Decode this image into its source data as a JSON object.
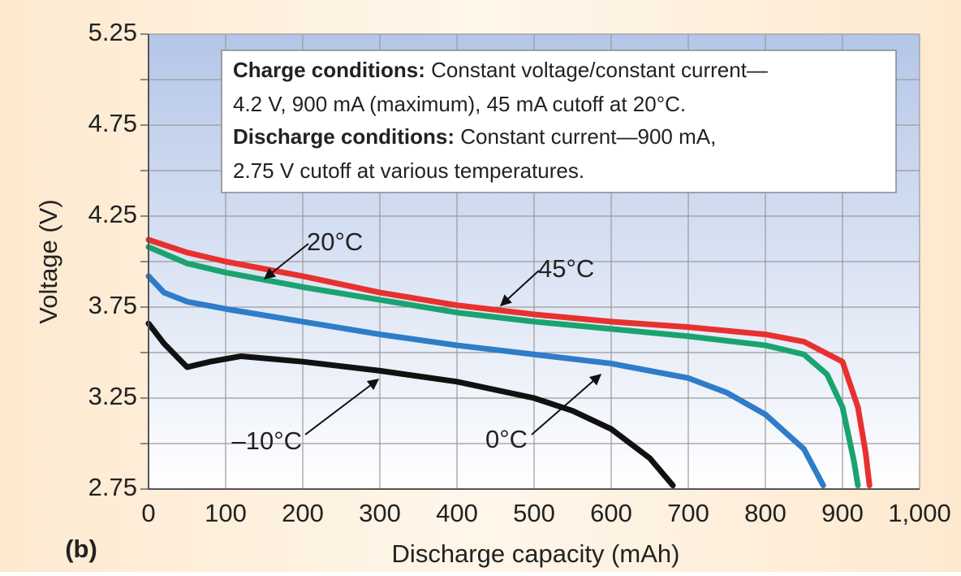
{
  "chart_data": {
    "type": "line",
    "panel_label": "(b)",
    "xlabel": "Discharge capacity (mAh)",
    "ylabel": "Voltage (V)",
    "xlim": [
      0,
      1000
    ],
    "xticks": [
      0,
      100,
      200,
      300,
      400,
      500,
      600,
      700,
      800,
      900,
      {
        "value": 1000,
        "label": "1,000"
      }
    ],
    "ylim": [
      2.75,
      5.25
    ],
    "yticks": [
      2.75,
      3.25,
      3.75,
      4.25,
      4.75,
      5.25
    ],
    "minor_yticks": [
      3.0,
      3.5,
      4.0,
      4.5,
      5.0
    ],
    "grid": true,
    "note": {
      "charge_heading": "Charge conditions:",
      "charge_text_1": "Constant voltage/constant current—",
      "charge_text_2": "4.2 V, 900 mA (maximum), 45 mA cutoff at 20°C.",
      "discharge_heading": "Discharge conditions:",
      "discharge_text_1": "Constant current—900 mA,",
      "discharge_text_2": "2.75 V cutoff at various temperatures."
    },
    "series": [
      {
        "name": "20°C",
        "color": "#e8312f",
        "x": [
          0,
          50,
          100,
          200,
          300,
          400,
          500,
          600,
          700,
          800,
          850,
          900,
          920,
          930,
          935
        ],
        "values": [
          4.12,
          4.05,
          4.0,
          3.92,
          3.83,
          3.76,
          3.71,
          3.67,
          3.64,
          3.6,
          3.56,
          3.45,
          3.2,
          2.95,
          2.77
        ]
      },
      {
        "name": "45°C",
        "color": "#1aa36f",
        "x": [
          0,
          50,
          100,
          200,
          300,
          400,
          500,
          600,
          700,
          800,
          850,
          880,
          900,
          915,
          920
        ],
        "values": [
          4.08,
          3.99,
          3.94,
          3.86,
          3.79,
          3.72,
          3.67,
          3.63,
          3.59,
          3.54,
          3.49,
          3.38,
          3.2,
          2.9,
          2.77
        ]
      },
      {
        "name": "0°C",
        "color": "#2f7cc8",
        "x": [
          0,
          20,
          50,
          100,
          200,
          300,
          400,
          500,
          600,
          700,
          750,
          800,
          850,
          875
        ],
        "values": [
          3.92,
          3.83,
          3.78,
          3.74,
          3.67,
          3.6,
          3.54,
          3.49,
          3.44,
          3.36,
          3.28,
          3.16,
          2.97,
          2.77
        ]
      },
      {
        "name": "–10°C",
        "color": "#111111",
        "x": [
          0,
          20,
          50,
          80,
          120,
          200,
          300,
          400,
          500,
          550,
          600,
          650,
          680
        ],
        "values": [
          3.66,
          3.55,
          3.42,
          3.45,
          3.48,
          3.45,
          3.4,
          3.34,
          3.25,
          3.18,
          3.08,
          2.92,
          2.77
        ]
      }
    ]
  }
}
